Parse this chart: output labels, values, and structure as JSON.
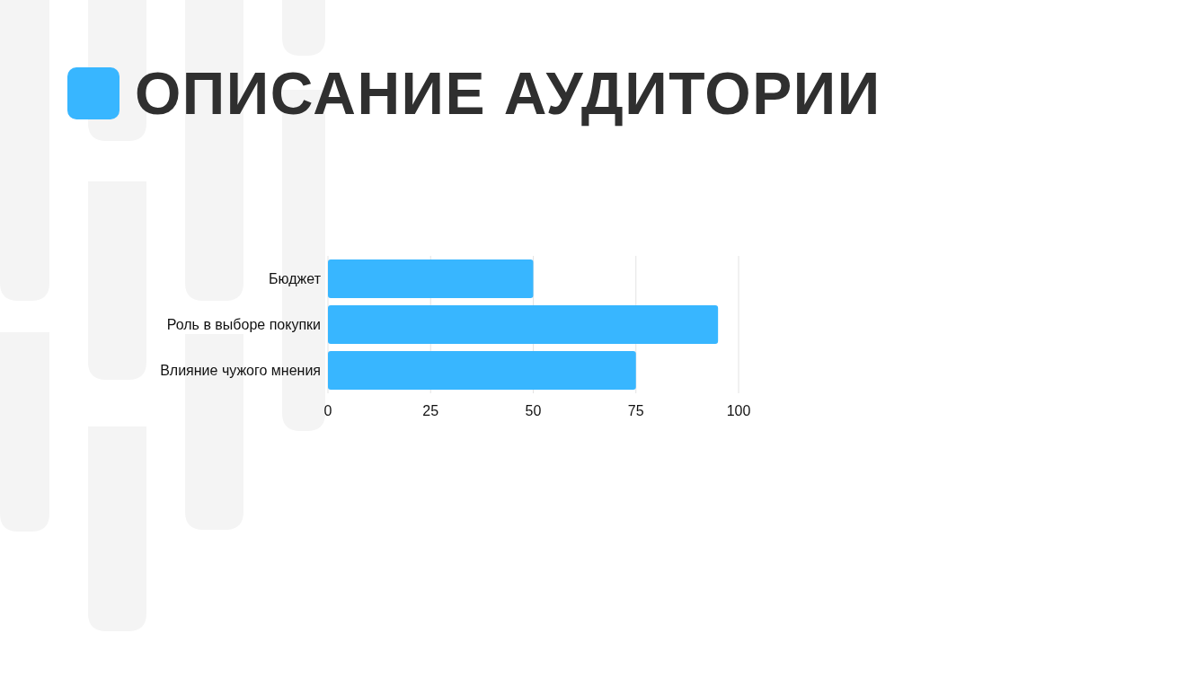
{
  "chart_data": {
    "type": "bar",
    "title": "ОПИСАНИЕ АУДИТОРИИ",
    "orientation": "horizontal",
    "categories": [
      "Бюджет",
      "Роль в выборе покупки",
      "Влияние чужого мнения"
    ],
    "values": [
      50,
      95,
      75
    ],
    "color": "#38b6ff",
    "xlim": [
      0,
      100
    ],
    "xticks": [
      0,
      25,
      50,
      75,
      100
    ],
    "grid": "x"
  }
}
